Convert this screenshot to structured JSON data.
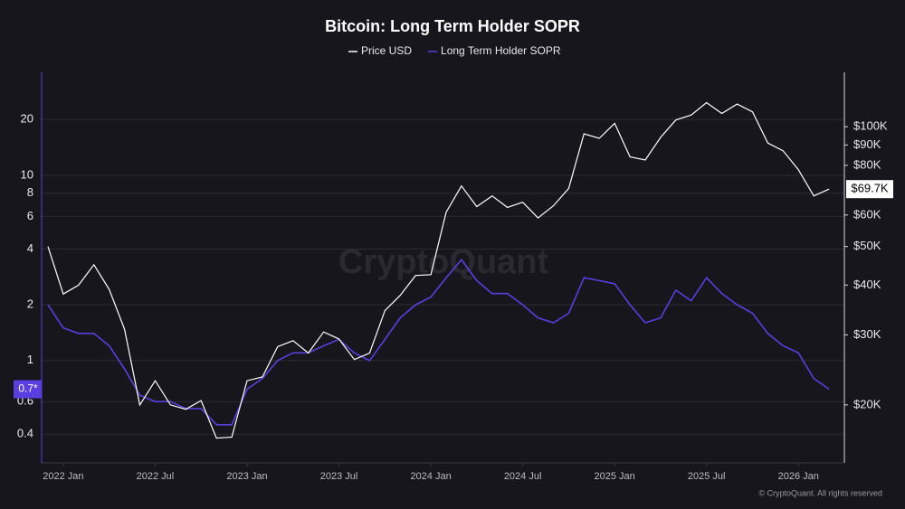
{
  "chart_data": {
    "type": "line",
    "title": "Bitcoin: Long Term Holder SOPR",
    "watermark": "CryptoQuant",
    "source": "© CryptoQuant. All rights reserved",
    "x": [
      "2021-12",
      "2022-01",
      "2022-02",
      "2022-03",
      "2022-04",
      "2022-05",
      "2022-06",
      "2022-07",
      "2022-08",
      "2022-09",
      "2022-10",
      "2022-11",
      "2022-12",
      "2023-01",
      "2023-02",
      "2023-03",
      "2023-04",
      "2023-05",
      "2023-06",
      "2023-07",
      "2023-08",
      "2023-09",
      "2023-10",
      "2023-11",
      "2023-12",
      "2024-01",
      "2024-02",
      "2024-03",
      "2024-04",
      "2024-05",
      "2024-06",
      "2024-07",
      "2024-08",
      "2024-09",
      "2024-10",
      "2024-11",
      "2024-12",
      "2025-01",
      "2025-02",
      "2025-03",
      "2025-04",
      "2025-05",
      "2025-06",
      "2025-07",
      "2025-08",
      "2025-09",
      "2025-10",
      "2025-11",
      "2025-12",
      "2026-01",
      "2026-02",
      "2026-03"
    ],
    "xlim": [
      "2021-12",
      "2026-04"
    ],
    "xticks": [
      {
        "value": "2022-01",
        "label": "2022 Jan"
      },
      {
        "value": "2022-07",
        "label": "2022 Jul"
      },
      {
        "value": "2023-01",
        "label": "2023 Jan"
      },
      {
        "value": "2023-07",
        "label": "2023 Jul"
      },
      {
        "value": "2024-01",
        "label": "2024 Jan"
      },
      {
        "value": "2024-07",
        "label": "2024 Jul"
      },
      {
        "value": "2025-01",
        "label": "2025 Jan"
      },
      {
        "value": "2025-07",
        "label": "2025 Jul"
      },
      {
        "value": "2026-01",
        "label": "2026 Jan"
      }
    ],
    "yscale": "log",
    "ylim": [
      0.28,
      36
    ],
    "yticks": [
      0.4,
      0.6,
      1,
      2,
      4,
      6,
      8,
      10,
      20
    ],
    "y2scale": "log",
    "y2lim": [
      14300,
      137000
    ],
    "y2ticks": [
      {
        "value": 20000,
        "label": "$20K"
      },
      {
        "value": 30000,
        "label": "$30K"
      },
      {
        "value": 40000,
        "label": "$40K"
      },
      {
        "value": 50000,
        "label": "$50K"
      },
      {
        "value": 60000,
        "label": "$60K"
      },
      {
        "value": 80000,
        "label": "$80K"
      },
      {
        "value": 90000,
        "label": "$90K"
      },
      {
        "value": 100000,
        "label": "$100K"
      }
    ],
    "grid": true,
    "series": [
      {
        "name": "Price USD",
        "color": "#ffffff",
        "axis": "y2",
        "values": [
          50000,
          38000,
          40000,
          45000,
          39000,
          31000,
          20000,
          23000,
          20000,
          19500,
          20500,
          16500,
          16600,
          23000,
          23500,
          28000,
          29000,
          27000,
          30500,
          29300,
          26000,
          27000,
          34500,
          37700,
          42300,
          42500,
          61000,
          71000,
          63000,
          67000,
          62700,
          64600,
          59000,
          63300,
          70000,
          96000,
          93500,
          102000,
          84000,
          82500,
          94000,
          104000,
          107000,
          115000,
          108000,
          114000,
          109000,
          91000,
          87000,
          78000,
          67000,
          69700
        ]
      },
      {
        "name": "Long Term Holder SOPR",
        "color": "#5a3ee0",
        "axis": "y",
        "values": [
          2.0,
          1.5,
          1.4,
          1.4,
          1.2,
          0.9,
          0.65,
          0.6,
          0.6,
          0.55,
          0.55,
          0.45,
          0.45,
          0.7,
          0.8,
          1.0,
          1.1,
          1.1,
          1.2,
          1.3,
          1.1,
          1.0,
          1.3,
          1.7,
          2.0,
          2.2,
          2.8,
          3.5,
          2.7,
          2.3,
          2.3,
          2.0,
          1.7,
          1.6,
          1.8,
          2.8,
          2.7,
          2.6,
          2.0,
          1.6,
          1.7,
          2.4,
          2.1,
          2.8,
          2.3,
          2.0,
          1.8,
          1.4,
          1.2,
          1.1,
          0.8,
          0.7
        ]
      }
    ],
    "last_values": [
      {
        "axis": "y",
        "value": 0.7,
        "label": "0.7*"
      },
      {
        "axis": "y2",
        "value": 69700,
        "label": "$69.7K"
      }
    ]
  }
}
